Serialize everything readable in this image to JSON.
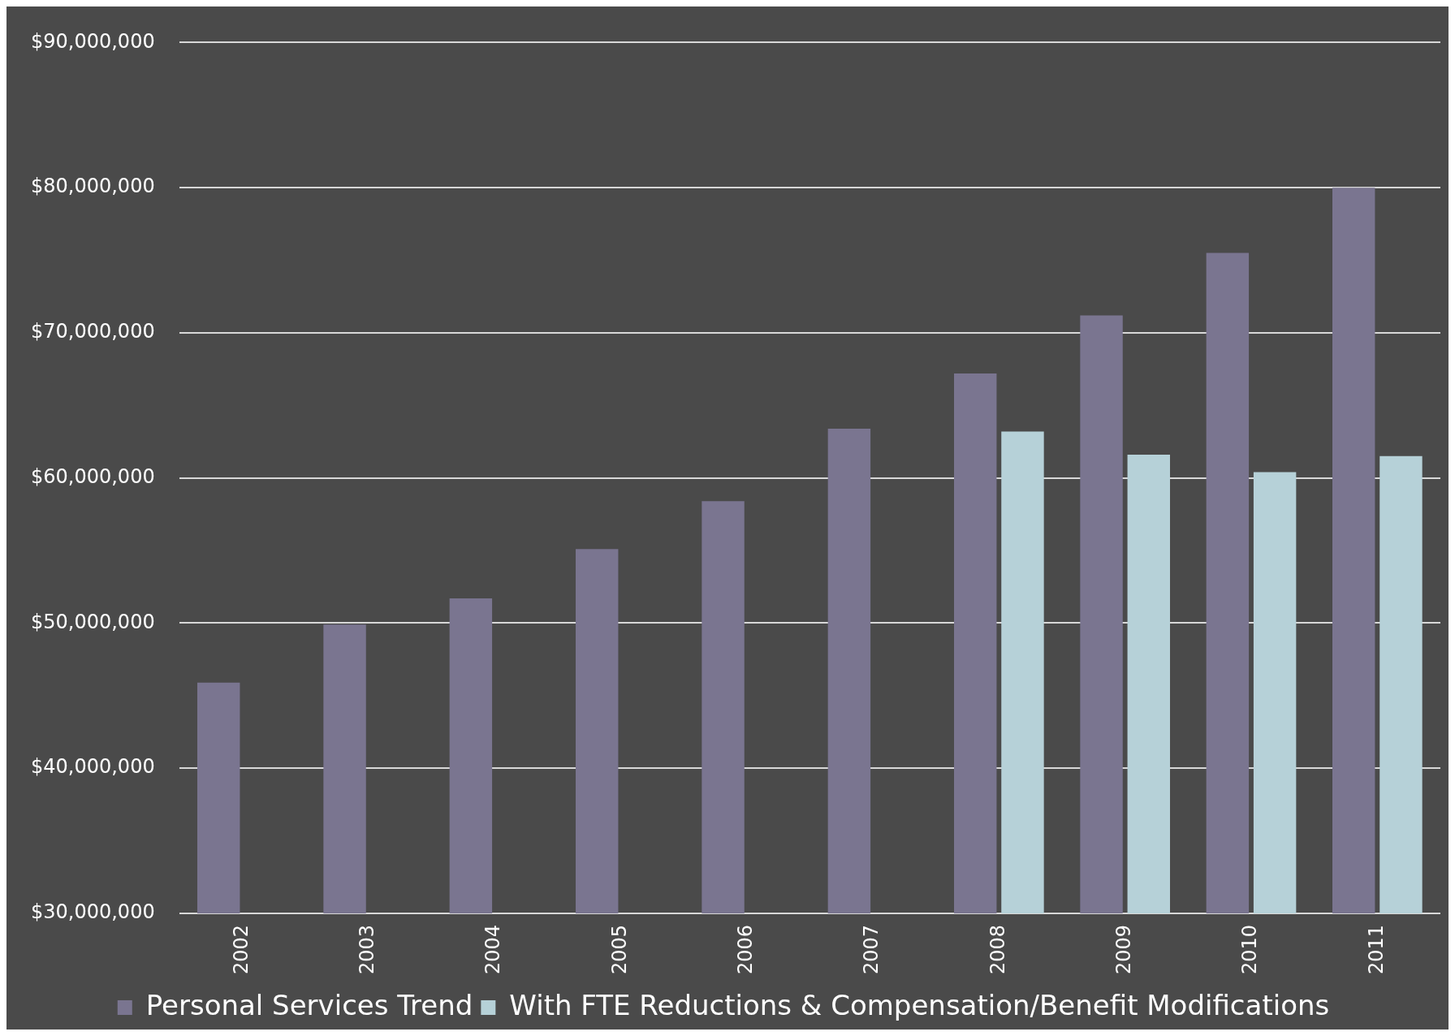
{
  "chart_data": {
    "type": "bar",
    "categories": [
      "2002",
      "2003",
      "2004",
      "2005",
      "2006",
      "2007",
      "2008",
      "2009",
      "2010",
      "2011"
    ],
    "series": [
      {
        "name": "Personal Services Trend",
        "color": "#7a7590",
        "values": [
          45900000,
          49900000,
          51700000,
          55100000,
          58400000,
          63400000,
          67200000,
          71200000,
          75500000,
          80000000
        ]
      },
      {
        "name": "With FTE Reductions & Compensation/Benefit Modifications",
        "color": "#b6d1d8",
        "values": [
          null,
          null,
          null,
          null,
          null,
          null,
          63200000,
          61600000,
          60400000,
          61500000
        ]
      }
    ],
    "ylim": [
      30000000,
      90000000
    ],
    "yticks": [
      {
        "value": 30000000,
        "label": "$30,000,000"
      },
      {
        "value": 40000000,
        "label": "$40,000,000"
      },
      {
        "value": 50000000,
        "label": "$50,000,000"
      },
      {
        "value": 60000000,
        "label": "$60,000,000"
      },
      {
        "value": 70000000,
        "label": "$70,000,000"
      },
      {
        "value": 80000000,
        "label": "$80,000,000"
      },
      {
        "value": 90000000,
        "label": "$90,000,000"
      }
    ],
    "grid": "y",
    "legend": "bottom"
  }
}
